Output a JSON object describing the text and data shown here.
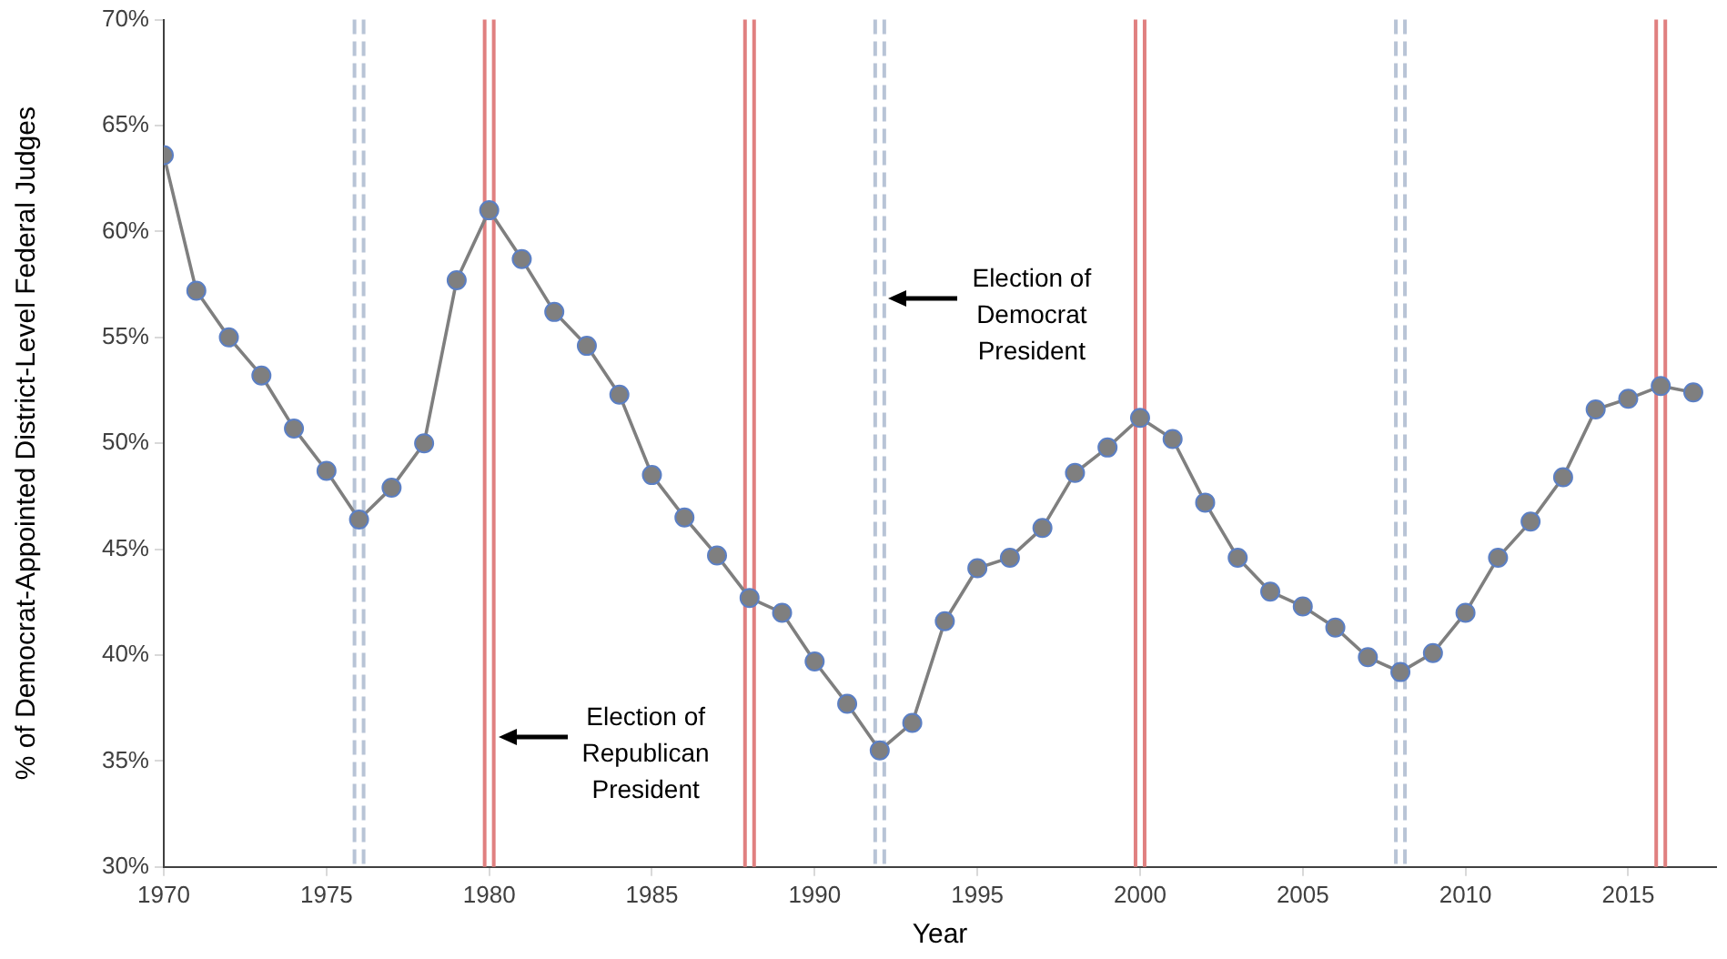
{
  "chart_data": {
    "type": "line",
    "xlabel": "Year",
    "ylabel": "% of Democrat-Appointed District-Level Federal Judges",
    "x": [
      1970,
      1971,
      1972,
      1973,
      1974,
      1975,
      1976,
      1977,
      1978,
      1979,
      1980,
      1981,
      1982,
      1983,
      1984,
      1985,
      1986,
      1987,
      1988,
      1989,
      1990,
      1991,
      1992,
      1993,
      1994,
      1995,
      1996,
      1997,
      1998,
      1999,
      2000,
      2001,
      2002,
      2003,
      2004,
      2005,
      2006,
      2007,
      2008,
      2009,
      2010,
      2011,
      2012,
      2013,
      2014,
      2015,
      2016,
      2017
    ],
    "series": [
      {
        "color": "#7f7f7f",
        "values": [
          63.6,
          57.2,
          55.0,
          53.2,
          50.7,
          48.7,
          46.4,
          47.9,
          50.0,
          57.7,
          61.0,
          58.7,
          56.2,
          54.6,
          52.3,
          48.5,
          46.5,
          44.7,
          42.7,
          42.0,
          39.7,
          37.7,
          35.5,
          36.8,
          41.6,
          44.1,
          44.6,
          46.0,
          48.6,
          49.8,
          51.2,
          50.2,
          47.2,
          44.6,
          43.0,
          42.3,
          41.3,
          39.9,
          39.2,
          40.1,
          42.0,
          44.6,
          46.3,
          48.4,
          51.6,
          52.1,
          52.7,
          52.4
        ]
      }
    ],
    "marker": "circle",
    "line_style": "solid",
    "grid": false,
    "legend": false,
    "xlim": [
      1970,
      2017.7
    ],
    "xticks": [
      1970,
      1975,
      1980,
      1985,
      1990,
      1995,
      2000,
      2005,
      2010,
      2015
    ],
    "ylim": [
      30,
      70
    ],
    "yticks": [
      {
        "value": 30,
        "label": "30%"
      },
      {
        "value": 35,
        "label": "35%"
      },
      {
        "value": 40,
        "label": "40%"
      },
      {
        "value": 45,
        "label": "45%"
      },
      {
        "value": 50,
        "label": "50%"
      },
      {
        "value": 55,
        "label": "55%"
      },
      {
        "value": 60,
        "label": "60%"
      },
      {
        "value": 65,
        "label": "65%"
      },
      {
        "value": 70,
        "label": "70%"
      }
    ],
    "ref_lines": [
      {
        "axis": "x",
        "value": 1976,
        "color": "#b8c4d6",
        "line_style": "dashed"
      },
      {
        "axis": "x",
        "value": 1980,
        "color": "#e08080",
        "line_style": "solid"
      },
      {
        "axis": "x",
        "value": 1988,
        "color": "#e08080",
        "line_style": "solid"
      },
      {
        "axis": "x",
        "value": 1992,
        "color": "#b8c4d6",
        "line_style": "dashed"
      },
      {
        "axis": "x",
        "value": 2000,
        "color": "#e08080",
        "line_style": "solid"
      },
      {
        "axis": "x",
        "value": 2008,
        "color": "#b8c4d6",
        "line_style": "dashed"
      },
      {
        "axis": "x",
        "value": 2016,
        "color": "#e08080",
        "line_style": "solid"
      }
    ],
    "annotations": [
      "Election of\nRepublican\nPresident",
      "Election of\nDemocrat\nPresident"
    ]
  }
}
